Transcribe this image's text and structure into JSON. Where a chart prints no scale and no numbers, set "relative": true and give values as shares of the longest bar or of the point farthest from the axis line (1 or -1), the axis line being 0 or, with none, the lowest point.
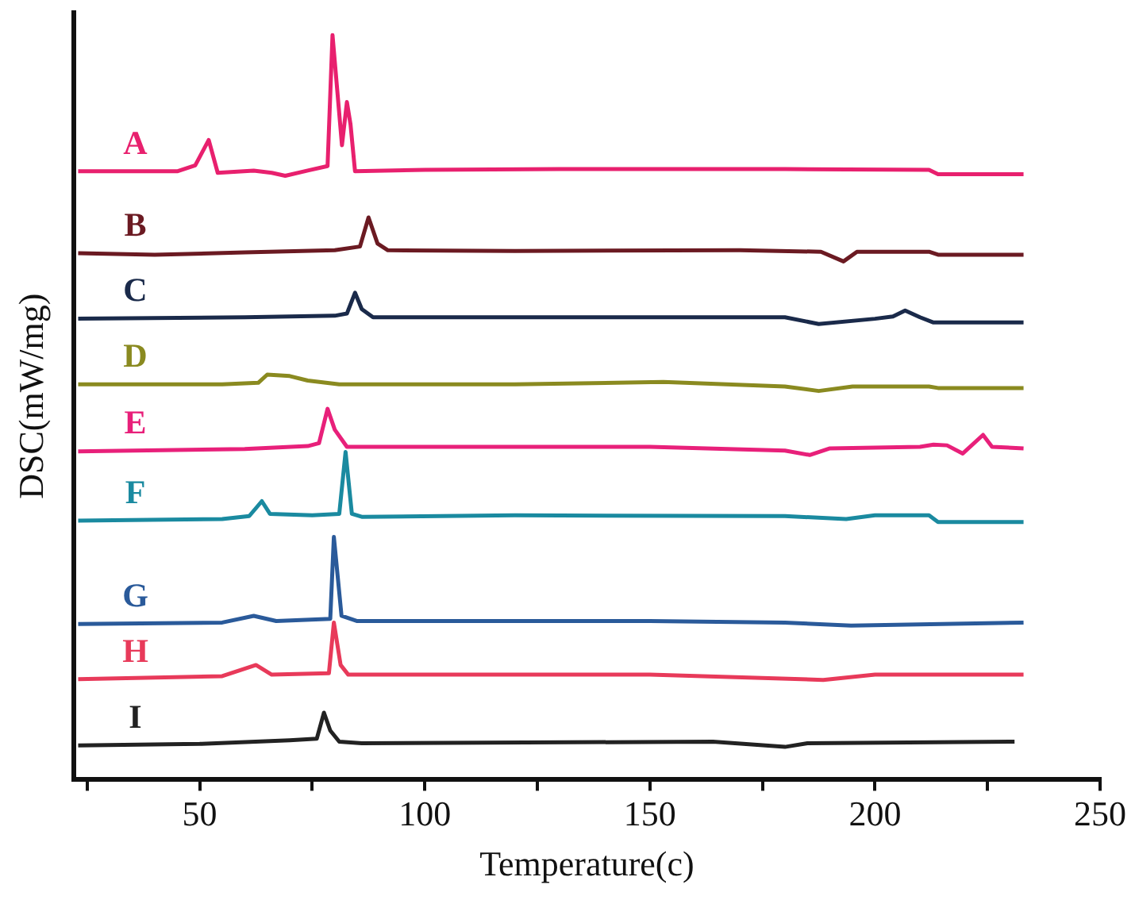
{
  "chart_data": {
    "type": "line",
    "xlabel": "Temperature(c)",
    "ylabel": "DSC(mW/mg)",
    "relative": true,
    "grid": false,
    "legend": false,
    "marker": "none",
    "line_style": "solid",
    "tick_labels": "x",
    "xlim": [
      22,
      250
    ],
    "xticks": [
      {
        "value": 25,
        "label": null
      },
      50,
      {
        "value": 75,
        "label": null
      },
      100,
      {
        "value": 125,
        "label": null
      },
      150,
      {
        "value": 175,
        "label": null
      },
      200,
      {
        "value": 225,
        "label": null
      },
      250
    ],
    "series": [
      {
        "name": "A",
        "color": "#e8206e",
        "x": [
          23,
          45,
          49,
          52,
          54,
          62,
          66,
          69,
          74,
          78.4,
          79.5,
          81.6,
          82.7,
          83.5,
          84.5,
          100,
          130,
          180,
          212,
          214,
          233
        ],
        "values": [
          0.817,
          0.817,
          0.825,
          0.859,
          0.815,
          0.818,
          0.815,
          0.811,
          0.818,
          0.824,
          1.0,
          0.852,
          0.91,
          0.88,
          0.817,
          0.819,
          0.82,
          0.82,
          0.819,
          0.813,
          0.813
        ]
      },
      {
        "name": "B",
        "color": "#6b1a22",
        "x": [
          23,
          40,
          60,
          80,
          85.6,
          87.5,
          89.5,
          91.8,
          120,
          170,
          188,
          193,
          196,
          212,
          214,
          233
        ],
        "values": [
          0.707,
          0.705,
          0.708,
          0.711,
          0.716,
          0.755,
          0.72,
          0.711,
          0.71,
          0.711,
          0.709,
          0.696,
          0.709,
          0.709,
          0.705,
          0.705
        ]
      },
      {
        "name": "C",
        "color": "#1a2a4a",
        "x": [
          23,
          60,
          80,
          82.7,
          84.5,
          86,
          88.5,
          130,
          180,
          187.5,
          200,
          204,
          206.7,
          210,
          213,
          233
        ],
        "values": [
          0.619,
          0.621,
          0.623,
          0.626,
          0.654,
          0.632,
          0.621,
          0.621,
          0.621,
          0.612,
          0.619,
          0.622,
          0.63,
          0.621,
          0.614,
          0.614
        ]
      },
      {
        "name": "D",
        "color": "#8a8a20",
        "x": [
          23,
          55,
          63,
          65,
          70,
          74,
          81,
          120,
          153,
          180,
          187.5,
          195,
          212,
          214,
          233
        ],
        "values": [
          0.531,
          0.531,
          0.533,
          0.544,
          0.542,
          0.536,
          0.531,
          0.531,
          0.534,
          0.528,
          0.522,
          0.528,
          0.528,
          0.526,
          0.526
        ]
      },
      {
        "name": "E",
        "color": "#e8207a",
        "x": [
          23,
          60,
          74,
          76.5,
          78.4,
          80,
          82.7,
          100,
          150,
          180,
          185.5,
          190,
          210,
          213,
          216,
          219.5,
          224,
          226,
          233
        ],
        "values": [
          0.441,
          0.444,
          0.448,
          0.452,
          0.498,
          0.47,
          0.447,
          0.447,
          0.447,
          0.442,
          0.436,
          0.445,
          0.447,
          0.45,
          0.449,
          0.438,
          0.463,
          0.447,
          0.445
        ]
      },
      {
        "name": "F",
        "color": "#1a8aa0",
        "x": [
          23,
          55,
          61,
          63.8,
          65.6,
          75,
          81,
          82.4,
          83.8,
          86,
          120,
          180,
          193.6,
          200,
          212,
          214,
          233
        ],
        "values": [
          0.348,
          0.35,
          0.354,
          0.374,
          0.357,
          0.355,
          0.357,
          0.44,
          0.357,
          0.353,
          0.355,
          0.354,
          0.35,
          0.355,
          0.355,
          0.346,
          0.346
        ]
      },
      {
        "name": "G",
        "color": "#2a5a9a",
        "x": [
          23,
          55,
          62,
          67,
          79,
          79.8,
          81.5,
          85,
          150,
          180,
          194.7,
          233
        ],
        "values": [
          0.209,
          0.211,
          0.22,
          0.213,
          0.216,
          0.326,
          0.22,
          0.213,
          0.213,
          0.211,
          0.207,
          0.211
        ]
      },
      {
        "name": "H",
        "color": "#e83a5a",
        "x": [
          23,
          55,
          62.5,
          66,
          78.7,
          79.8,
          81.3,
          83,
          150,
          188.5,
          200,
          233
        ],
        "values": [
          0.135,
          0.139,
          0.154,
          0.141,
          0.143,
          0.211,
          0.154,
          0.141,
          0.141,
          0.134,
          0.141,
          0.141
        ]
      },
      {
        "name": "I",
        "color": "#222222",
        "x": [
          23,
          50,
          70,
          76,
          77.6,
          79,
          81,
          86,
          164,
          180,
          185,
          231
        ],
        "values": [
          0.046,
          0.048,
          0.053,
          0.055,
          0.09,
          0.066,
          0.051,
          0.049,
          0.051,
          0.044,
          0.049,
          0.051
        ]
      }
    ]
  }
}
